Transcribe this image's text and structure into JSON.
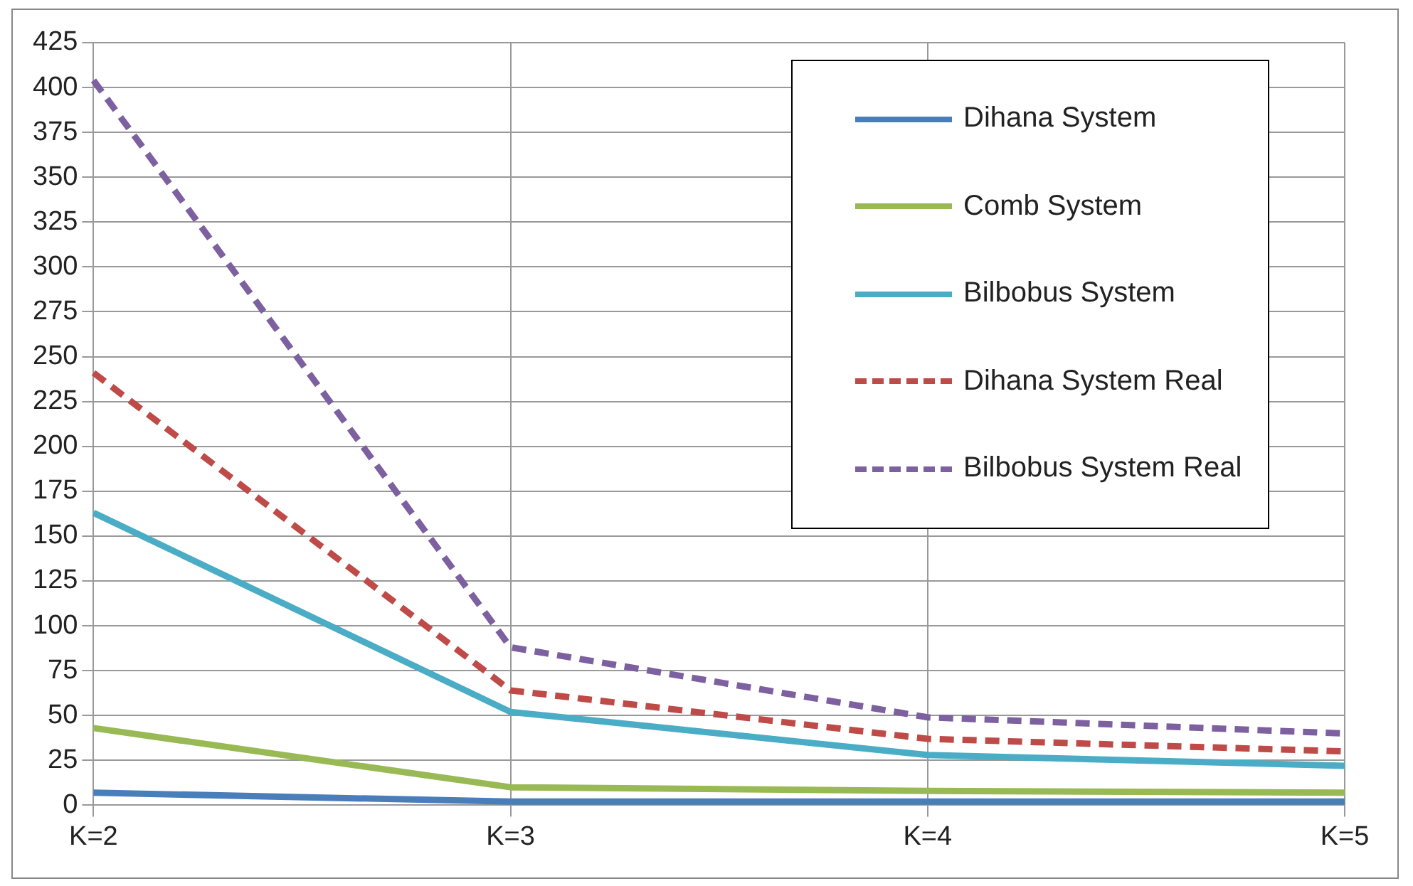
{
  "chart_data": {
    "type": "line",
    "categories": [
      "K=2",
      "K=3",
      "K=4",
      "K=5"
    ],
    "series": [
      {
        "name": "Dihana System",
        "color": "#4a7ebb",
        "line_style": "solid",
        "values": [
          7,
          2,
          2,
          2
        ]
      },
      {
        "name": "Comb System",
        "color": "#98b954",
        "line_style": "solid",
        "values": [
          43,
          10,
          8,
          7
        ]
      },
      {
        "name": "Bilbobus System",
        "color": "#4bacc6",
        "line_style": "solid",
        "values": [
          163,
          52,
          28,
          22
        ]
      },
      {
        "name": "Dihana System Real",
        "color": "#be4b48",
        "line_style": "dashed",
        "values": [
          241,
          64,
          37,
          30
        ]
      },
      {
        "name": "Bilbobus System Real",
        "color": "#7d60a0",
        "line_style": "dashed",
        "values": [
          404,
          88,
          49,
          40
        ]
      }
    ],
    "ylim": [
      0,
      425
    ],
    "yticks": [
      0,
      25,
      50,
      75,
      100,
      125,
      150,
      175,
      200,
      225,
      250,
      275,
      300,
      325,
      350,
      375,
      400,
      425
    ],
    "grid": true,
    "legend": "top right",
    "marker": "none"
  }
}
